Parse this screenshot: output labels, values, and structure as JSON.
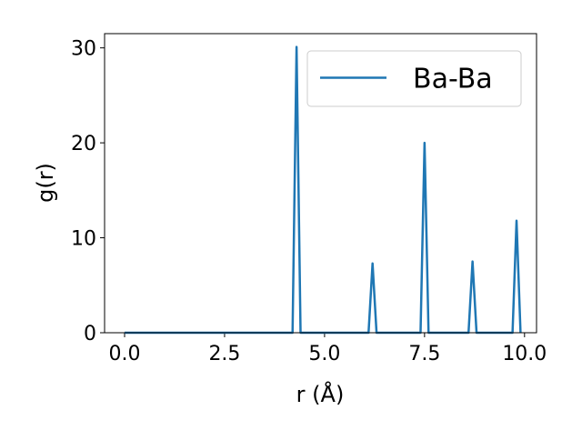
{
  "chart_data": {
    "type": "line",
    "xlabel": "r (Å)",
    "ylabel": "g(r)",
    "x": [
      0,
      0.1,
      0.2,
      0.3,
      0.4,
      0.5,
      0.6,
      0.7,
      0.8,
      0.9,
      1,
      1.1,
      1.2,
      1.3,
      1.4,
      1.5,
      1.6,
      1.7,
      1.8,
      1.9,
      2,
      2.1,
      2.2,
      2.3,
      2.4,
      2.5,
      2.6,
      2.7,
      2.8,
      2.9,
      3,
      3.1,
      3.2,
      3.3,
      3.4,
      3.5,
      3.6,
      3.7,
      3.8,
      3.9,
      4,
      4.1,
      4.2,
      4.3,
      4.4,
      4.5,
      4.6,
      4.7,
      4.8,
      4.9,
      5,
      5.1,
      5.2,
      5.3,
      5.4,
      5.5,
      5.6,
      5.7,
      5.8,
      5.9,
      6,
      6.1,
      6.2,
      6.3,
      6.4,
      6.5,
      6.6,
      6.7,
      6.8,
      6.9,
      7,
      7.1,
      7.2,
      7.3,
      7.4,
      7.5,
      7.6,
      7.7,
      7.8,
      7.9,
      8,
      8.1,
      8.2,
      8.3,
      8.4,
      8.5,
      8.6,
      8.7,
      8.8,
      8.9,
      9,
      9.1,
      9.2,
      9.3,
      9.4,
      9.5,
      9.6,
      9.7,
      9.8,
      9.9
    ],
    "series": [
      {
        "name": "Ba-Ba",
        "color": "#1f77b4",
        "values": [
          0,
          0,
          0,
          0,
          0,
          0,
          0,
          0,
          0,
          0,
          0,
          0,
          0,
          0,
          0,
          0,
          0,
          0,
          0,
          0,
          0,
          0,
          0,
          0,
          0,
          0,
          0,
          0,
          0,
          0,
          0,
          0,
          0,
          0,
          0,
          0,
          0,
          0,
          0,
          0,
          0,
          0,
          0,
          30.1,
          0,
          0,
          0,
          0,
          0,
          0,
          0,
          0,
          0,
          0,
          0,
          0,
          0,
          0,
          0,
          0,
          0,
          0,
          7.3,
          0,
          0,
          0,
          0,
          0,
          0,
          0,
          0,
          0,
          0,
          0,
          0,
          20.0,
          0,
          0,
          0,
          0,
          0,
          0,
          0,
          0,
          0,
          0,
          0,
          7.5,
          0,
          0,
          0,
          0,
          0,
          0,
          0,
          0,
          0,
          0,
          11.8,
          0
        ]
      }
    ],
    "xlim": [
      -0.5,
      10.3
    ],
    "ylim": [
      0,
      31.5
    ],
    "xticks": [
      {
        "value": 0,
        "label": "0.0"
      },
      2.5,
      {
        "value": 5,
        "label": "5.0"
      },
      7.5,
      {
        "value": 10,
        "label": "10.0"
      }
    ],
    "yticks": [
      0,
      10,
      20,
      30
    ],
    "legend": "upper right"
  }
}
